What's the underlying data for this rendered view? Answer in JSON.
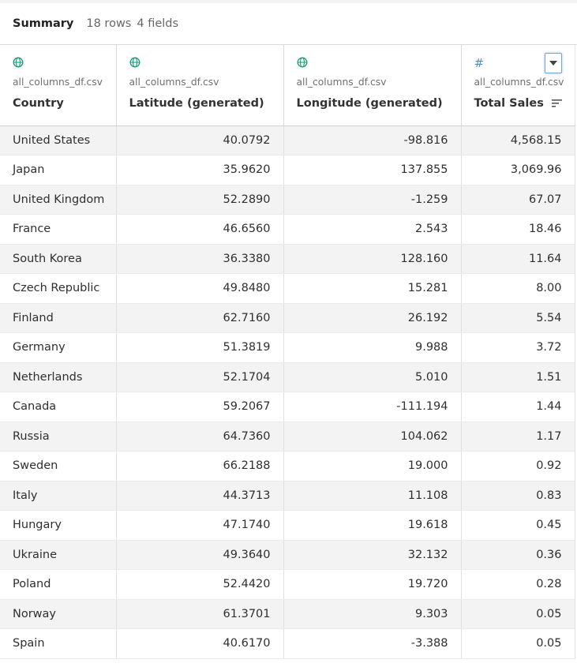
{
  "summary": {
    "title": "Summary",
    "rows_label": "18 rows",
    "fields_label": "4 fields"
  },
  "colors": {
    "geo_icon": "#1a9e77",
    "measure_icon": "#5b8cc4",
    "dropdown_border": "#6fa8dc"
  },
  "columns": [
    {
      "type_icon": "globe-icon",
      "source": "all_columns_df.csv",
      "name": "Country"
    },
    {
      "type_icon": "globe-icon",
      "source": "all_columns_df.csv",
      "name": "Latitude (generated)"
    },
    {
      "type_icon": "globe-icon",
      "source": "all_columns_df.csv",
      "name": "Longitude (generated)"
    },
    {
      "type_icon": "hash-icon",
      "source": "all_columns_df.csv",
      "name": "Total Sales",
      "sorted": "descending",
      "dropdown_icon": "chevron-down-icon"
    }
  ],
  "rows": [
    [
      "United States",
      "40.0792",
      "-98.816",
      "4,568.15"
    ],
    [
      "Japan",
      "35.9620",
      "137.855",
      "3,069.96"
    ],
    [
      "United Kingdom",
      "52.2890",
      "-1.259",
      "67.07"
    ],
    [
      "France",
      "46.6560",
      "2.543",
      "18.46"
    ],
    [
      "South Korea",
      "36.3380",
      "128.160",
      "11.64"
    ],
    [
      "Czech Republic",
      "49.8480",
      "15.281",
      "8.00"
    ],
    [
      "Finland",
      "62.7160",
      "26.192",
      "5.54"
    ],
    [
      "Germany",
      "51.3819",
      "9.988",
      "3.72"
    ],
    [
      "Netherlands",
      "52.1704",
      "5.010",
      "1.51"
    ],
    [
      "Canada",
      "59.2067",
      "-111.194",
      "1.44"
    ],
    [
      "Russia",
      "64.7360",
      "104.062",
      "1.17"
    ],
    [
      "Sweden",
      "66.2188",
      "19.000",
      "0.92"
    ],
    [
      "Italy",
      "44.3713",
      "11.108",
      "0.83"
    ],
    [
      "Hungary",
      "47.1740",
      "19.618",
      "0.45"
    ],
    [
      "Ukraine",
      "49.3640",
      "32.132",
      "0.36"
    ],
    [
      "Poland",
      "52.4420",
      "19.720",
      "0.28"
    ],
    [
      "Norway",
      "61.3701",
      "9.303",
      "0.05"
    ],
    [
      "Spain",
      "40.6170",
      "-3.388",
      "0.05"
    ]
  ]
}
